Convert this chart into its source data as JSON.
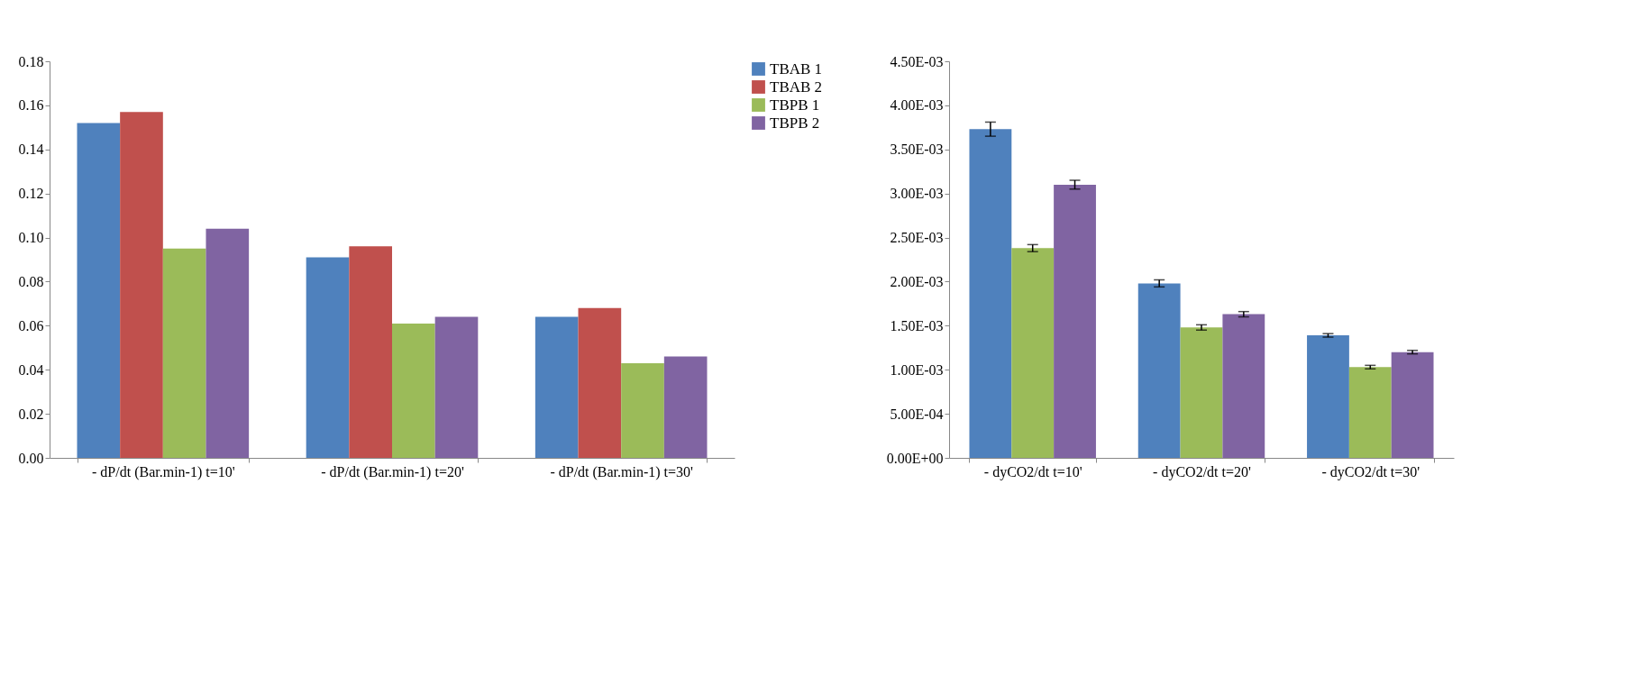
{
  "chart_data": [
    {
      "type": "bar",
      "categories": [
        "- dP/dt (Bar.min-1) t=10'",
        "- dP/dt (Bar.min-1) t=20'",
        "- dP/dt (Bar.min-1) t=30'"
      ],
      "ylim": [
        0,
        0.18
      ],
      "yticks": [
        {
          "value": 0,
          "label": "0.00"
        },
        {
          "value": 0.02,
          "label": "0.02"
        },
        {
          "value": 0.04,
          "label": "0.04"
        },
        {
          "value": 0.06,
          "label": "0.06"
        },
        {
          "value": 0.08,
          "label": "0.08"
        },
        {
          "value": 0.1,
          "label": "0.10"
        },
        {
          "value": 0.12,
          "label": "0.12"
        },
        {
          "value": 0.14,
          "label": "0.14"
        },
        {
          "value": 0.16,
          "label": "0.16"
        },
        {
          "value": 0.18,
          "label": "0.18"
        }
      ],
      "grid": false,
      "legend": "right",
      "series": [
        {
          "name": "TBAB 1",
          "color": "#4f81bd",
          "values": [
            0.152,
            0.091,
            0.064
          ]
        },
        {
          "name": "TBAB 2",
          "color": "#c0504d",
          "values": [
            0.157,
            0.096,
            0.068
          ]
        },
        {
          "name": "TBPB 1",
          "color": "#9bbb59",
          "values": [
            0.095,
            0.061,
            0.043
          ]
        },
        {
          "name": "TBPB 2",
          "color": "#8064a2",
          "values": [
            0.104,
            0.064,
            0.046
          ]
        }
      ]
    },
    {
      "type": "bar",
      "categories": [
        "- dyCO2/dt    t=10'",
        "- dyCO2/dt    t=20'",
        "- dyCO2/dt    t=30'"
      ],
      "ylim": [
        0,
        0.0045
      ],
      "yticks": [
        {
          "value": 0,
          "label": "0.00E+00"
        },
        {
          "value": 0.0005,
          "label": "5.00E-04"
        },
        {
          "value": 0.001,
          "label": "1.00E-03"
        },
        {
          "value": 0.0015,
          "label": "1.50E-03"
        },
        {
          "value": 0.002,
          "label": "2.00E-03"
        },
        {
          "value": 0.0025,
          "label": "2.50E-03"
        },
        {
          "value": 0.003,
          "label": "3.00E-03"
        },
        {
          "value": 0.0035,
          "label": "3.50E-03"
        },
        {
          "value": 0.004,
          "label": "4.00E-03"
        },
        {
          "value": 0.0045,
          "label": "4.50E-03"
        }
      ],
      "grid": false,
      "series": [
        {
          "color": "#4f81bd",
          "values": [
            0.00373,
            0.00198,
            0.00139
          ],
          "errors": [
            8e-05,
            4e-05,
            2e-05
          ]
        },
        {
          "color": "#9bbb59",
          "values": [
            0.00238,
            0.00148,
            0.00103
          ],
          "errors": [
            4e-05,
            3e-05,
            2e-05
          ]
        },
        {
          "color": "#8064a2",
          "values": [
            0.0031,
            0.00163,
            0.0012
          ],
          "errors": [
            5e-05,
            3e-05,
            2e-05
          ]
        }
      ]
    }
  ]
}
